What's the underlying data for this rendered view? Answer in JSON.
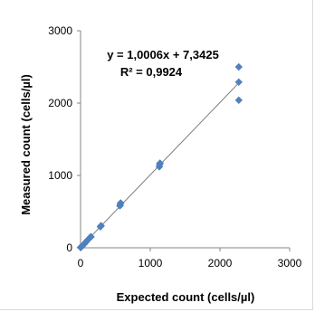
{
  "chart_data": {
    "type": "scatter",
    "xlabel": "Expected count (cells/µl)",
    "ylabel": "Measured count (cells/µl)",
    "xlim": [
      0,
      3000
    ],
    "ylim": [
      0,
      3000
    ],
    "x_ticks": [
      "0",
      "1000",
      "2000",
      "3000"
    ],
    "y_ticks": [
      "0",
      "1000",
      "2000",
      "3000"
    ],
    "grid": false,
    "marker_color": "#4f81bd",
    "trendline_color": "#7f7f7f",
    "annotation": {
      "equation": "y = 1,0006x + 7,3425",
      "r_squared": "R² = 0,9924"
    },
    "trendline": {
      "slope": 1.0006,
      "intercept": 7.3425,
      "x_range": [
        0,
        2270
      ]
    },
    "series": [
      {
        "points": [
          [
            0,
            5
          ],
          [
            5,
            8
          ],
          [
            10,
            12
          ],
          [
            15,
            18
          ],
          [
            20,
            22
          ],
          [
            30,
            30
          ],
          [
            40,
            42
          ],
          [
            55,
            55
          ],
          [
            70,
            72
          ],
          [
            90,
            95
          ],
          [
            110,
            115
          ],
          [
            140,
            145
          ],
          [
            145,
            150
          ],
          [
            150,
            152
          ],
          [
            285,
            290
          ],
          [
            290,
            300
          ],
          [
            295,
            305
          ],
          [
            565,
            580
          ],
          [
            570,
            600
          ],
          [
            575,
            620
          ],
          [
            1130,
            1120
          ],
          [
            1135,
            1150
          ],
          [
            1140,
            1170
          ],
          [
            2270,
            2040
          ],
          [
            2270,
            2290
          ],
          [
            2270,
            2500
          ]
        ]
      }
    ]
  }
}
